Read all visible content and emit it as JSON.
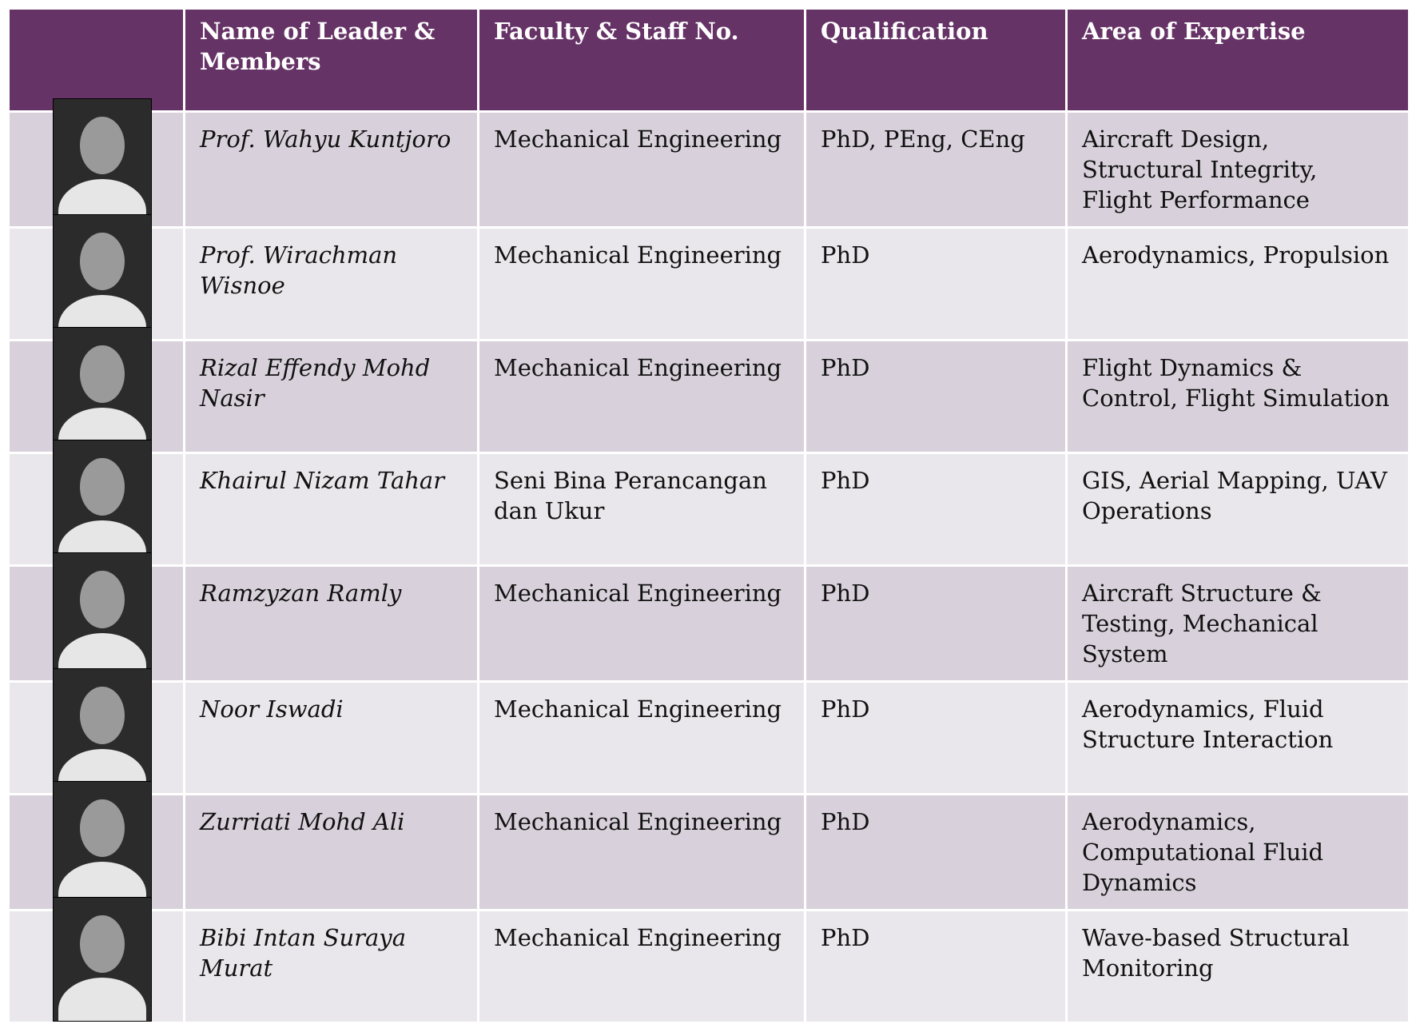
{
  "table": {
    "header": [
      "Name of Leader & Members",
      "Faculty &  Staff No.",
      "Qualification",
      "Area of Expertise"
    ],
    "rows": [
      [
        "Prof. Wahyu Kuntjoro",
        "Mechanical Engineering",
        "PhD, PEng, CEng",
        "Aircraft Design, Structural Integrity, Flight Performance"
      ],
      [
        "Prof. Wirachman Wisnoe",
        "Mechanical Engineering",
        "PhD",
        "Aerodynamics, Propulsion"
      ],
      [
        "Rizal Effendy Mohd Nasir",
        "Mechanical Engineering",
        "PhD",
        "Flight Dynamics & Control, Flight Simulation"
      ],
      [
        "Khairul Nizam Tahar",
        "Seni Bina Perancangan dan Ukur",
        "PhD",
        "GIS, Aerial Mapping, UAV Operations"
      ],
      [
        "Ramzyzan Ramly",
        "Mechanical Engineering",
        "PhD",
        "Aircraft Structure & Testing, Mechanical System"
      ],
      [
        "Noor Iswadi",
        "Mechanical Engineering",
        "PhD",
        "Aerodynamics, Fluid Structure Interaction"
      ],
      [
        "Zurriati Mohd Ali",
        "Mechanical Engineering",
        "PhD",
        "Aerodynamics, Computational Fluid Dynamics"
      ],
      [
        "Bibi Intan Suraya Murat",
        "Mechanical Engineering",
        "PhD",
        "Wave-based Structural Monitoring"
      ]
    ]
  }
}
